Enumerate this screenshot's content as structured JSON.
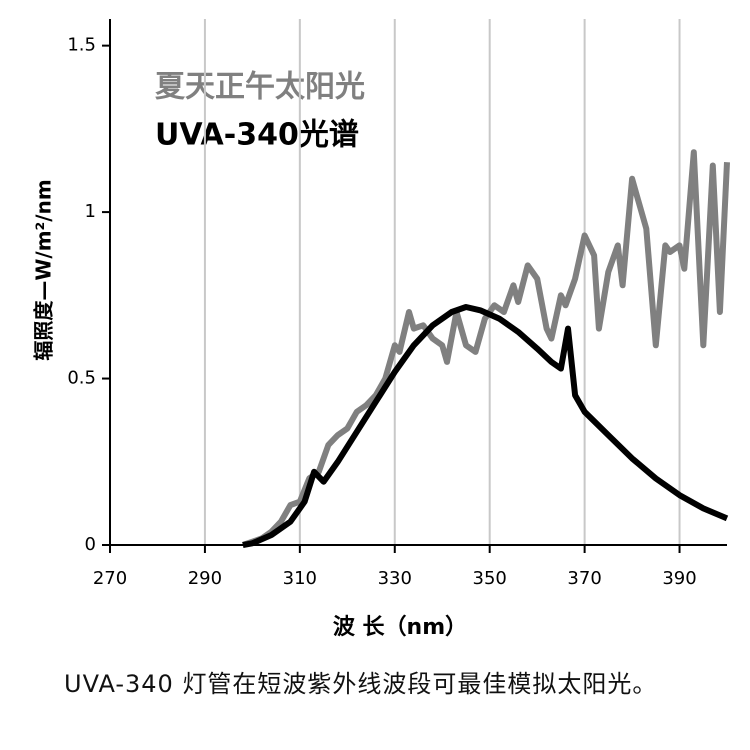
{
  "chart_data": {
    "type": "line",
    "y_label": "辐照度—W/m²/nm",
    "x_label": "波 长（nm）",
    "caption": "UVA-340 灯管在短波紫外线波段可最佳模拟太阳光。",
    "xlim": [
      270,
      400
    ],
    "xticks": [
      270,
      290,
      310,
      330,
      350,
      370,
      390
    ],
    "ylim": [
      0,
      1.58
    ],
    "yticks": [
      0,
      0.5,
      1,
      1.5
    ],
    "grid": "x",
    "series": [
      {
        "name": "夏天正午太阳光",
        "color": "#808080",
        "x": [
          298,
          300,
          302,
          304,
          306,
          308,
          310,
          312,
          314,
          316,
          318,
          320,
          322,
          324,
          326,
          328,
          330,
          331,
          333,
          334,
          336,
          338,
          340,
          341,
          343,
          345,
          347,
          349,
          351,
          353,
          355,
          356,
          358,
          360,
          362,
          363,
          365,
          366,
          368,
          370,
          372,
          373,
          375,
          377,
          378,
          380,
          381,
          383,
          385,
          387,
          388,
          390,
          391,
          393,
          395,
          397,
          398.5,
          400
        ],
        "values": [
          0,
          0.01,
          0.02,
          0.04,
          0.07,
          0.12,
          0.13,
          0.2,
          0.22,
          0.3,
          0.33,
          0.35,
          0.4,
          0.42,
          0.45,
          0.5,
          0.6,
          0.58,
          0.7,
          0.65,
          0.66,
          0.62,
          0.6,
          0.55,
          0.7,
          0.6,
          0.58,
          0.68,
          0.72,
          0.7,
          0.78,
          0.73,
          0.84,
          0.8,
          0.65,
          0.62,
          0.75,
          0.72,
          0.8,
          0.93,
          0.87,
          0.65,
          0.82,
          0.9,
          0.78,
          1.1,
          1.05,
          0.95,
          0.6,
          0.9,
          0.88,
          0.9,
          0.83,
          1.18,
          0.6,
          1.14,
          0.7,
          1.15
        ]
      },
      {
        "name": "UVA-340光谱",
        "color": "#000000",
        "x": [
          298,
          300,
          304,
          308,
          311,
          313,
          315,
          318,
          322,
          326,
          330,
          334,
          338,
          342,
          345,
          348,
          352,
          356,
          360,
          363,
          365,
          366.5,
          368,
          370,
          375,
          380,
          385,
          390,
          395,
          400
        ],
        "values": [
          0,
          0.005,
          0.03,
          0.07,
          0.13,
          0.22,
          0.19,
          0.25,
          0.34,
          0.43,
          0.52,
          0.6,
          0.66,
          0.7,
          0.715,
          0.705,
          0.68,
          0.64,
          0.59,
          0.55,
          0.53,
          0.65,
          0.45,
          0.4,
          0.33,
          0.26,
          0.2,
          0.15,
          0.11,
          0.08
        ]
      }
    ]
  }
}
